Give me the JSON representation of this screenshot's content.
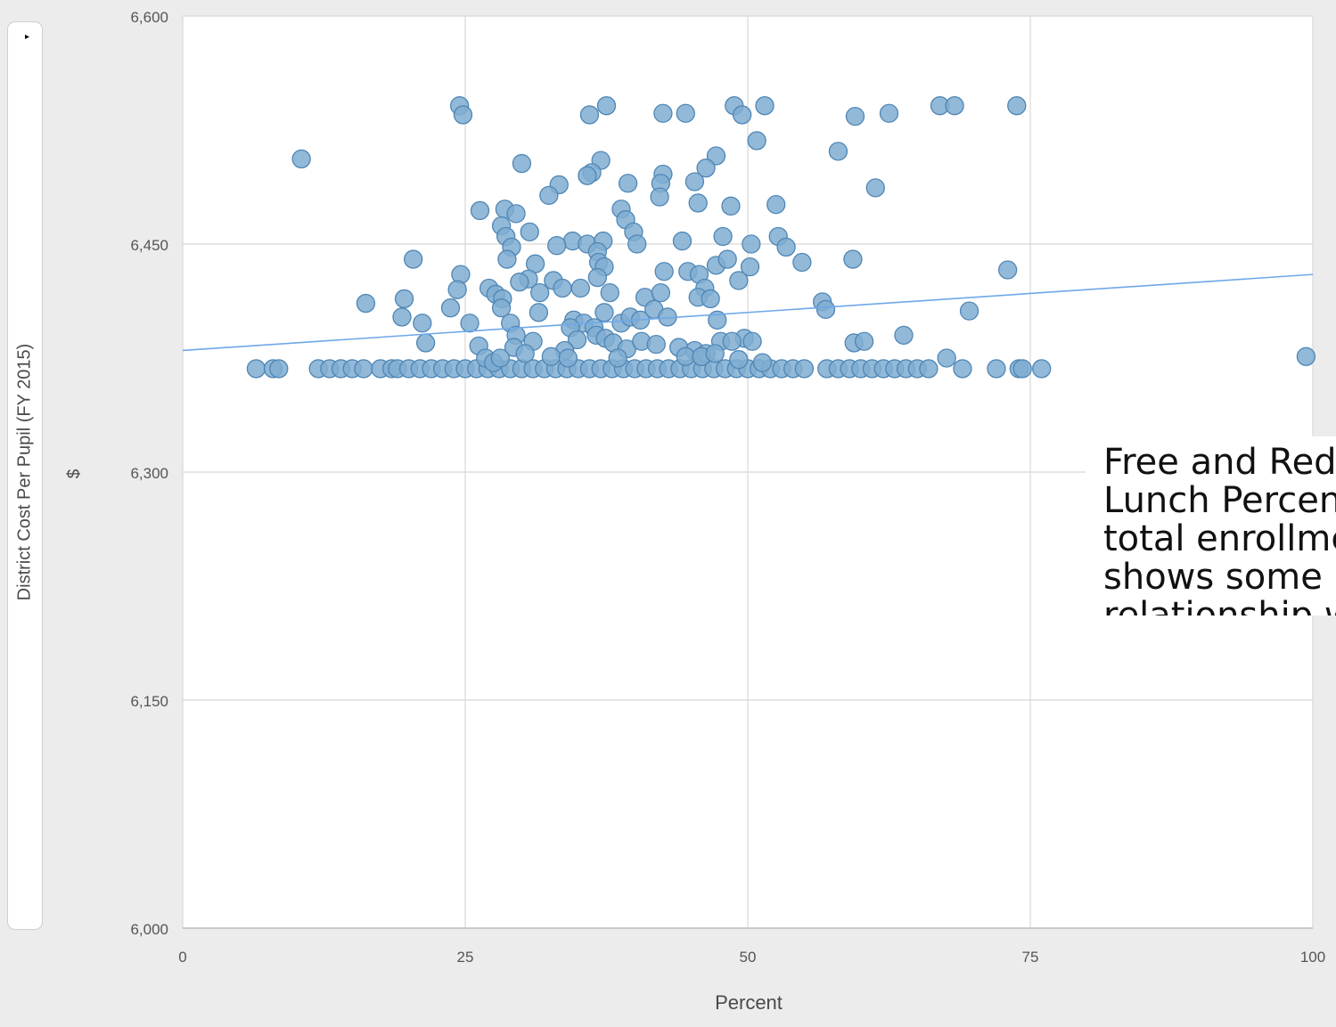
{
  "legend_toggle": {
    "icon": "triangle-right-icon",
    "symbol": "▸"
  },
  "annotation": {
    "text": "Free and Reduced Lunch Percentage of total enrollment shows some relationship with DCPP, but above minimum DCPP districts run the spectrum."
  },
  "colors": {
    "point_fill": "#7fadd1",
    "point_stroke": "#4f86b5",
    "trend_line": "#6fa8e8",
    "grid": "#d8d8d8",
    "background": "#ffffff"
  },
  "chart_data": {
    "type": "scatter",
    "title": "",
    "xlabel": "Percent",
    "ylabel": "District Cost Per Pupil (FY 2015)",
    "yunit": "$",
    "xlim": [
      0,
      100
    ],
    "ylim": [
      6000,
      6600
    ],
    "x_ticks": [
      "0",
      "25",
      "50",
      "75",
      "100"
    ],
    "y_ticks": [
      "6,000",
      "6,150",
      "6,300",
      "6,450",
      "6,600"
    ],
    "grid": true,
    "trendline": {
      "x": [
        0,
        100
      ],
      "y": [
        6380,
        6430
      ]
    },
    "points": [
      [
        6.5,
        6368
      ],
      [
        8,
        6368
      ],
      [
        8.5,
        6368
      ],
      [
        12,
        6368
      ],
      [
        13,
        6368
      ],
      [
        14,
        6368
      ],
      [
        15,
        6368
      ],
      [
        16,
        6368
      ],
      [
        17.5,
        6368
      ],
      [
        18.5,
        6368
      ],
      [
        19,
        6368
      ],
      [
        20,
        6368
      ],
      [
        21,
        6368
      ],
      [
        22,
        6368
      ],
      [
        23,
        6368
      ],
      [
        24,
        6368
      ],
      [
        25,
        6368
      ],
      [
        26,
        6368
      ],
      [
        27,
        6368
      ],
      [
        28,
        6368
      ],
      [
        29,
        6368
      ],
      [
        30,
        6368
      ],
      [
        31,
        6368
      ],
      [
        32,
        6368
      ],
      [
        33,
        6368
      ],
      [
        34,
        6368
      ],
      [
        35,
        6368
      ],
      [
        36,
        6368
      ],
      [
        37,
        6368
      ],
      [
        38,
        6368
      ],
      [
        39,
        6368
      ],
      [
        40,
        6368
      ],
      [
        41,
        6368
      ],
      [
        42,
        6368
      ],
      [
        43,
        6368
      ],
      [
        44,
        6368
      ],
      [
        45,
        6368
      ],
      [
        46,
        6368
      ],
      [
        47,
        6368
      ],
      [
        48,
        6368
      ],
      [
        49,
        6368
      ],
      [
        50,
        6368
      ],
      [
        51,
        6368
      ],
      [
        52,
        6368
      ],
      [
        53,
        6368
      ],
      [
        54,
        6368
      ],
      [
        55,
        6368
      ],
      [
        57,
        6368
      ],
      [
        58,
        6368
      ],
      [
        59,
        6368
      ],
      [
        60,
        6368
      ],
      [
        61,
        6368
      ],
      [
        62,
        6368
      ],
      [
        63,
        6368
      ],
      [
        64,
        6368
      ],
      [
        65,
        6368
      ],
      [
        66,
        6368
      ],
      [
        69,
        6368
      ],
      [
        72,
        6368
      ],
      [
        74,
        6368
      ],
      [
        74.3,
        6368
      ],
      [
        76,
        6368
      ],
      [
        10.5,
        6506
      ],
      [
        24.5,
        6541
      ],
      [
        24.8,
        6535
      ],
      [
        36,
        6535
      ],
      [
        37.5,
        6541
      ],
      [
        42.5,
        6536
      ],
      [
        44.5,
        6536
      ],
      [
        48.8,
        6541
      ],
      [
        49.5,
        6535
      ],
      [
        51.5,
        6541
      ],
      [
        59.5,
        6534
      ],
      [
        62.5,
        6536
      ],
      [
        67,
        6541
      ],
      [
        68.3,
        6541
      ],
      [
        73.8,
        6541
      ],
      [
        50.8,
        6518
      ],
      [
        58,
        6511
      ],
      [
        30,
        6503
      ],
      [
        37,
        6505
      ],
      [
        47.2,
        6508
      ],
      [
        46.3,
        6500
      ],
      [
        36.2,
        6497
      ],
      [
        35.8,
        6495
      ],
      [
        42.5,
        6496
      ],
      [
        42.3,
        6490
      ],
      [
        39.4,
        6490
      ],
      [
        33.3,
        6489
      ],
      [
        32.4,
        6482
      ],
      [
        45.3,
        6491
      ],
      [
        61.3,
        6487
      ],
      [
        26.3,
        6472
      ],
      [
        28.5,
        6473
      ],
      [
        29.5,
        6470
      ],
      [
        38.8,
        6473
      ],
      [
        42.2,
        6481
      ],
      [
        45.6,
        6477
      ],
      [
        48.5,
        6475
      ],
      [
        52.5,
        6476
      ],
      [
        28.2,
        6462
      ],
      [
        28.6,
        6455
      ],
      [
        30.7,
        6458
      ],
      [
        39.2,
        6466
      ],
      [
        39.9,
        6458
      ],
      [
        47.8,
        6455
      ],
      [
        52.7,
        6455
      ],
      [
        53.4,
        6448
      ],
      [
        50.3,
        6450
      ],
      [
        34.5,
        6452
      ],
      [
        35.8,
        6450
      ],
      [
        37.2,
        6452
      ],
      [
        36.7,
        6445
      ],
      [
        33.1,
        6449
      ],
      [
        29.1,
        6448
      ],
      [
        40.2,
        6450
      ],
      [
        44.2,
        6452
      ],
      [
        20.4,
        6440
      ],
      [
        24.6,
        6430
      ],
      [
        24.3,
        6420
      ],
      [
        28.7,
        6440
      ],
      [
        31.2,
        6437
      ],
      [
        36.8,
        6438
      ],
      [
        37.3,
        6435
      ],
      [
        42.6,
        6432
      ],
      [
        44.7,
        6432
      ],
      [
        45.7,
        6430
      ],
      [
        47.2,
        6436
      ],
      [
        48.2,
        6440
      ],
      [
        50.2,
        6435
      ],
      [
        54.8,
        6438
      ],
      [
        59.3,
        6440
      ],
      [
        73,
        6433
      ],
      [
        30.6,
        6427
      ],
      [
        29.8,
        6425
      ],
      [
        32.8,
        6426
      ],
      [
        33.6,
        6421
      ],
      [
        35.2,
        6421
      ],
      [
        36.7,
        6428
      ],
      [
        46.2,
        6421
      ],
      [
        49.2,
        6426
      ],
      [
        27.1,
        6421
      ],
      [
        27.7,
        6417
      ],
      [
        28.3,
        6414
      ],
      [
        31.6,
        6418
      ],
      [
        37.8,
        6418
      ],
      [
        40.9,
        6415
      ],
      [
        42.3,
        6418
      ],
      [
        45.6,
        6415
      ],
      [
        46.7,
        6414
      ],
      [
        16.2,
        6411
      ],
      [
        19.6,
        6414
      ],
      [
        19.4,
        6402
      ],
      [
        21.2,
        6398
      ],
      [
        23.7,
        6408
      ],
      [
        25.4,
        6398
      ],
      [
        28.2,
        6408
      ],
      [
        29,
        6398
      ],
      [
        31.5,
        6405
      ],
      [
        34.6,
        6400
      ],
      [
        35.5,
        6398
      ],
      [
        37.3,
        6405
      ],
      [
        38.8,
        6398
      ],
      [
        39.6,
        6402
      ],
      [
        40.5,
        6400
      ],
      [
        41.7,
        6407
      ],
      [
        42.9,
        6402
      ],
      [
        47.3,
        6400
      ],
      [
        56.6,
        6412
      ],
      [
        56.9,
        6407
      ],
      [
        69.6,
        6406
      ],
      [
        36.4,
        6395
      ],
      [
        36.6,
        6390
      ],
      [
        29.5,
        6390
      ],
      [
        34.3,
        6395
      ],
      [
        34.9,
        6387
      ],
      [
        43.9,
        6382
      ],
      [
        47.6,
        6386
      ],
      [
        49.7,
        6388
      ],
      [
        21.5,
        6385
      ],
      [
        26.2,
        6383
      ],
      [
        29.3,
        6382
      ],
      [
        31,
        6386
      ],
      [
        33.8,
        6380
      ],
      [
        37.4,
        6388
      ],
      [
        38.1,
        6385
      ],
      [
        39.3,
        6381
      ],
      [
        40.6,
        6386
      ],
      [
        41.9,
        6384
      ],
      [
        45.3,
        6380
      ],
      [
        46.3,
        6378
      ],
      [
        48.6,
        6386
      ],
      [
        50.4,
        6386
      ],
      [
        59.4,
        6385
      ],
      [
        60.3,
        6386
      ],
      [
        63.8,
        6390
      ],
      [
        67.6,
        6375
      ],
      [
        99.4,
        6376
      ],
      [
        26.8,
        6375
      ],
      [
        27.5,
        6372
      ],
      [
        28.1,
        6375
      ],
      [
        30.3,
        6378
      ],
      [
        32.6,
        6376
      ],
      [
        34.1,
        6375
      ],
      [
        38.5,
        6375
      ],
      [
        44.5,
        6376
      ],
      [
        45.9,
        6376
      ],
      [
        47.1,
        6378
      ],
      [
        49.2,
        6374
      ],
      [
        51.3,
        6372
      ]
    ]
  }
}
